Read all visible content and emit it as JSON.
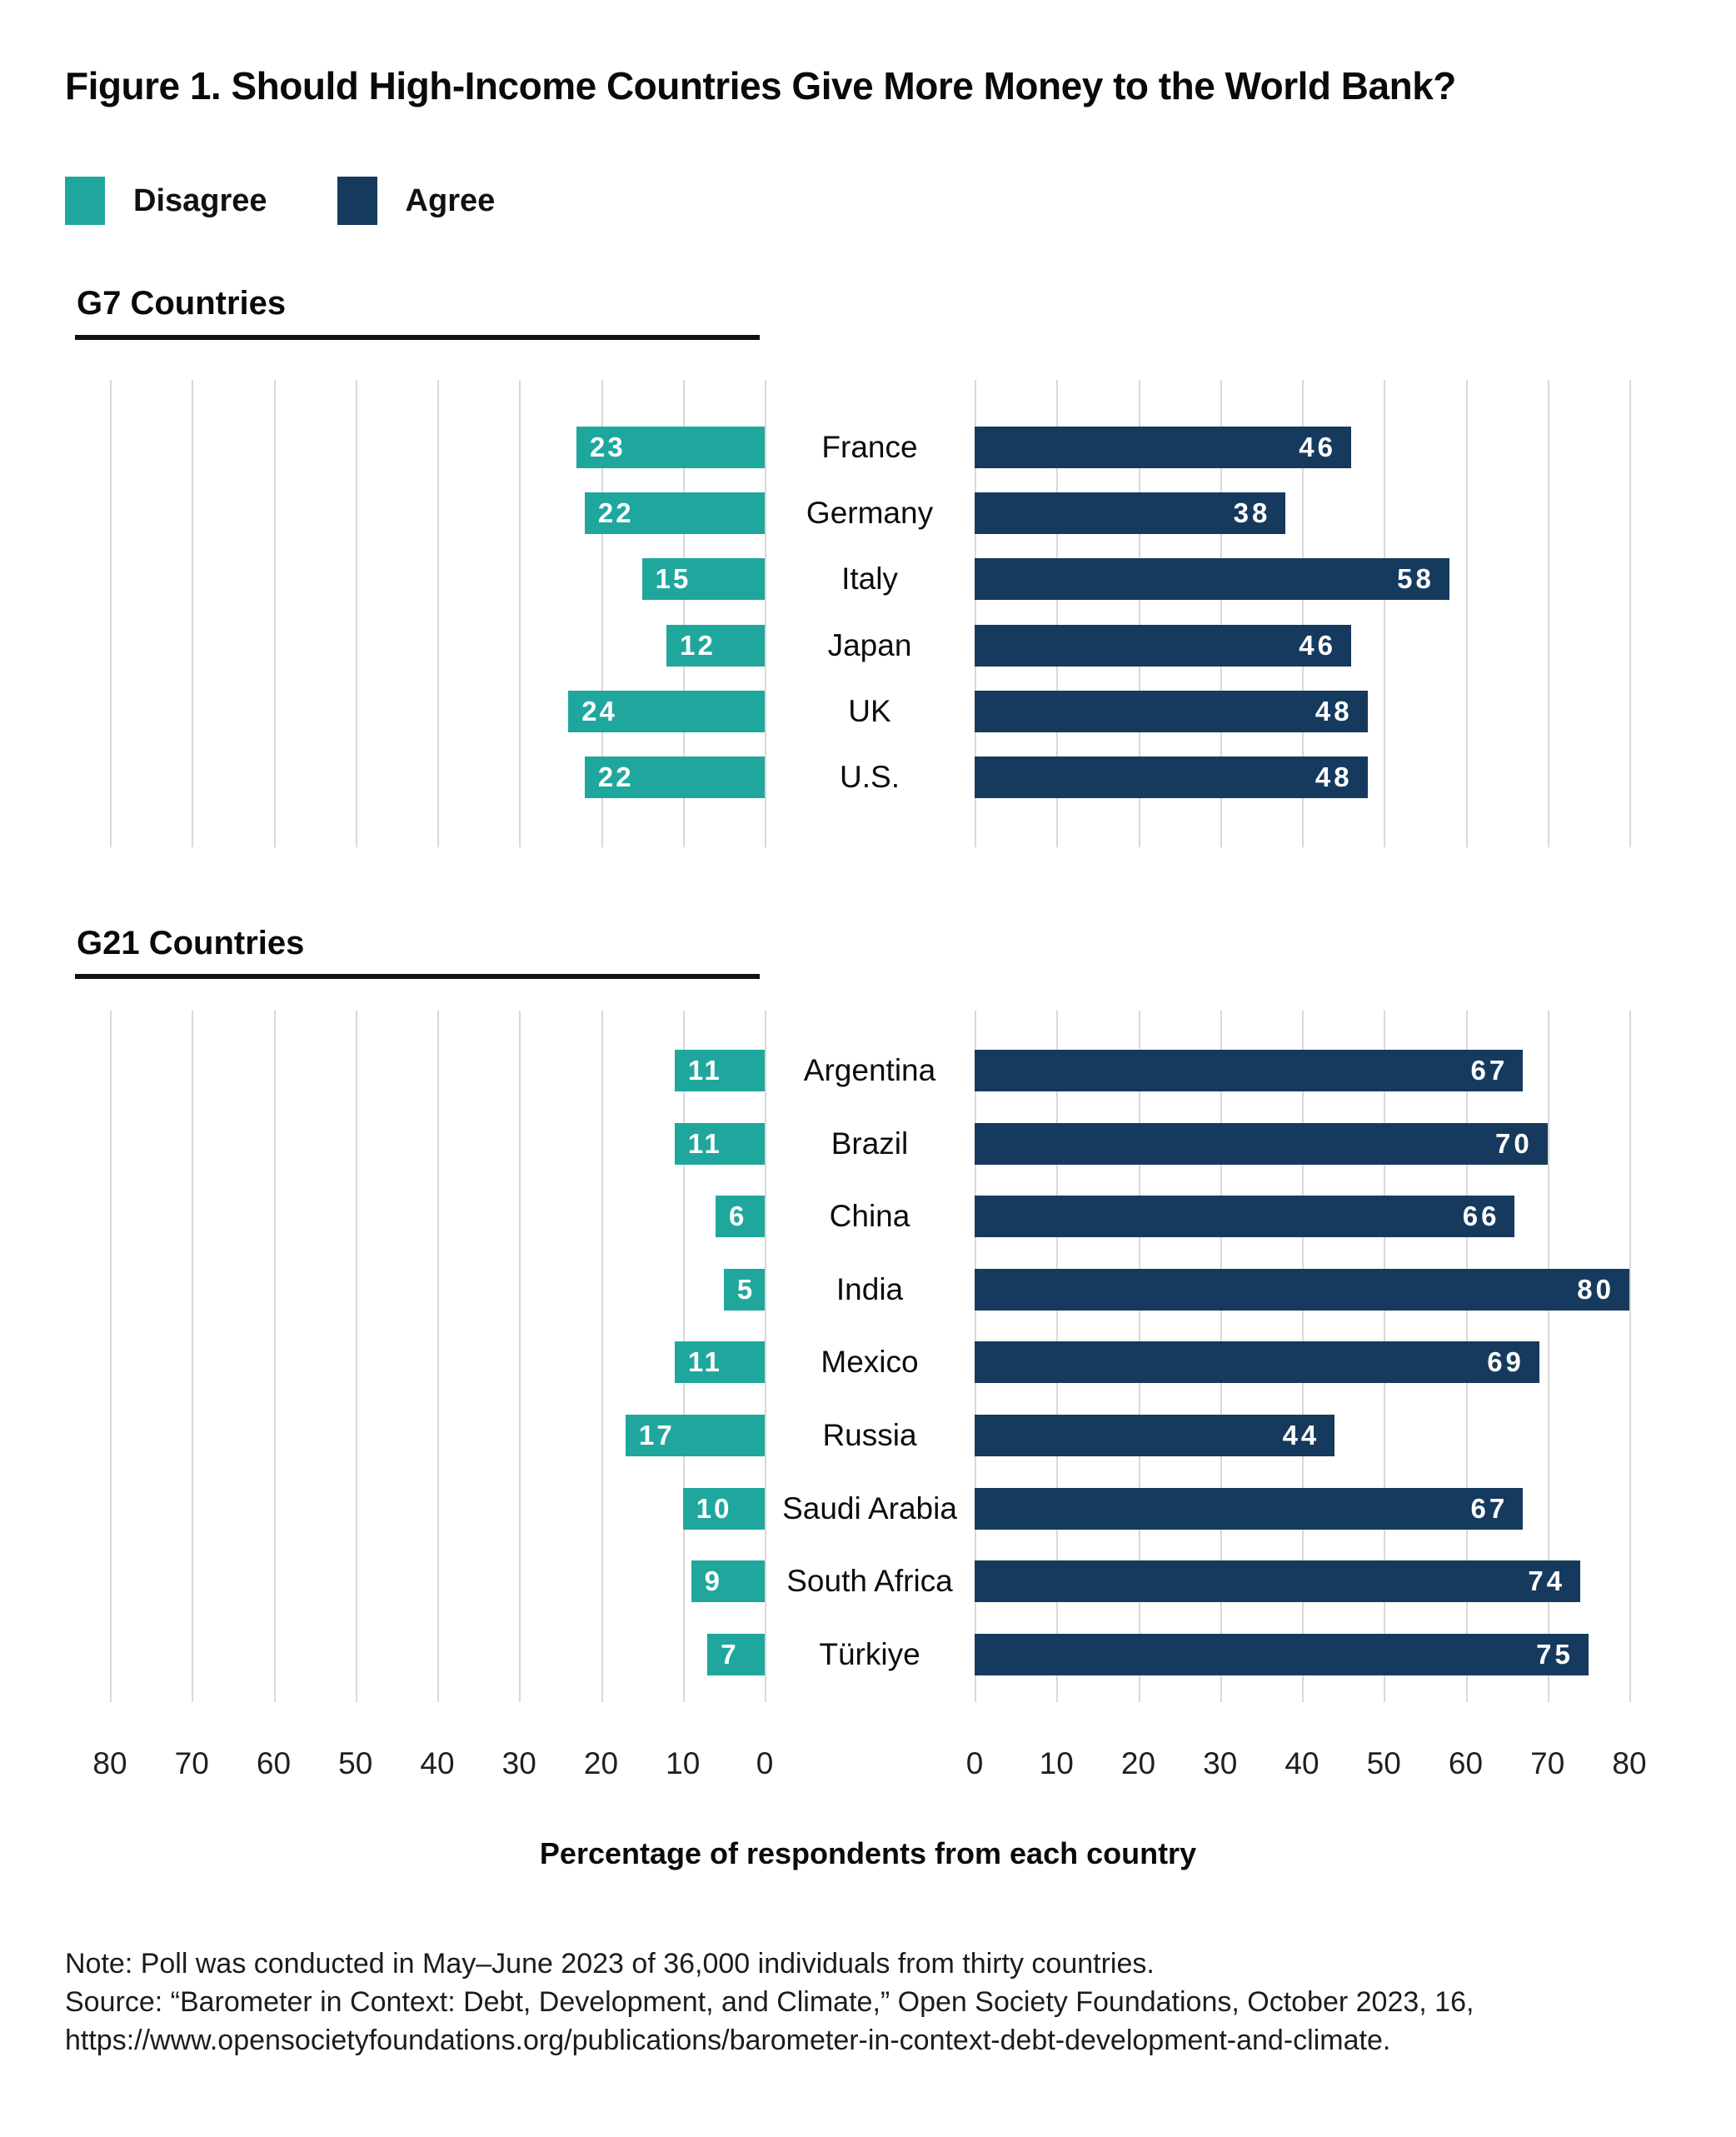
{
  "title": "Figure 1. Should High-Income Countries Give More Money to the World Bank?",
  "legend": [
    {
      "label": "Disagree",
      "color": "#20a79d"
    },
    {
      "label": "Agree",
      "color": "#163a5e"
    }
  ],
  "colors": {
    "disagree": "#20a79d",
    "agree": "#163a5e",
    "gridline": "#d8d8d8",
    "heading_rule": "#111111",
    "value_text": "#ffffff"
  },
  "xlabel": "Percentage of respondents from each country",
  "axis": {
    "left_ticks": [
      80,
      70,
      60,
      50,
      40,
      30,
      20,
      10,
      0
    ],
    "right_ticks": [
      0,
      10,
      20,
      30,
      40,
      50,
      60,
      70,
      80
    ]
  },
  "note_lines": [
    "Note: Poll was conducted in May–June 2023 of 36,000 individuals from thirty countries.",
    "Source: “Barometer in Context: Debt, Development, and Climate,” Open Society Foundations, October 2023, 16,",
    "https://www.opensocietyfoundations.org/publications/barometer-in-context-debt-development-and-climate."
  ],
  "chart_data": {
    "type": "bar",
    "orientation": "horizontal-diverging",
    "unit": "percent",
    "xlim": [
      0,
      80
    ],
    "grid": true,
    "legend_position": "top-left",
    "xlabel": "Percentage of respondents from each country",
    "panels": [
      {
        "title": "G7 Countries",
        "categories": [
          "France",
          "Germany",
          "Italy",
          "Japan",
          "UK",
          "U.S."
        ],
        "series": [
          {
            "name": "Disagree",
            "values": [
              23,
              22,
              15,
              12,
              24,
              22
            ]
          },
          {
            "name": "Agree",
            "values": [
              46,
              38,
              58,
              46,
              48,
              48
            ]
          }
        ]
      },
      {
        "title": "G21 Countries",
        "categories": [
          "Argentina",
          "Brazil",
          "China",
          "India",
          "Mexico",
          "Russia",
          "Saudi Arabia",
          "South Africa",
          "Türkiye"
        ],
        "series": [
          {
            "name": "Disagree",
            "values": [
              11,
              11,
              6,
              5,
              11,
              17,
              10,
              9,
              7
            ]
          },
          {
            "name": "Agree",
            "values": [
              67,
              70,
              66,
              80,
              69,
              44,
              67,
              74,
              75
            ]
          }
        ]
      }
    ]
  }
}
